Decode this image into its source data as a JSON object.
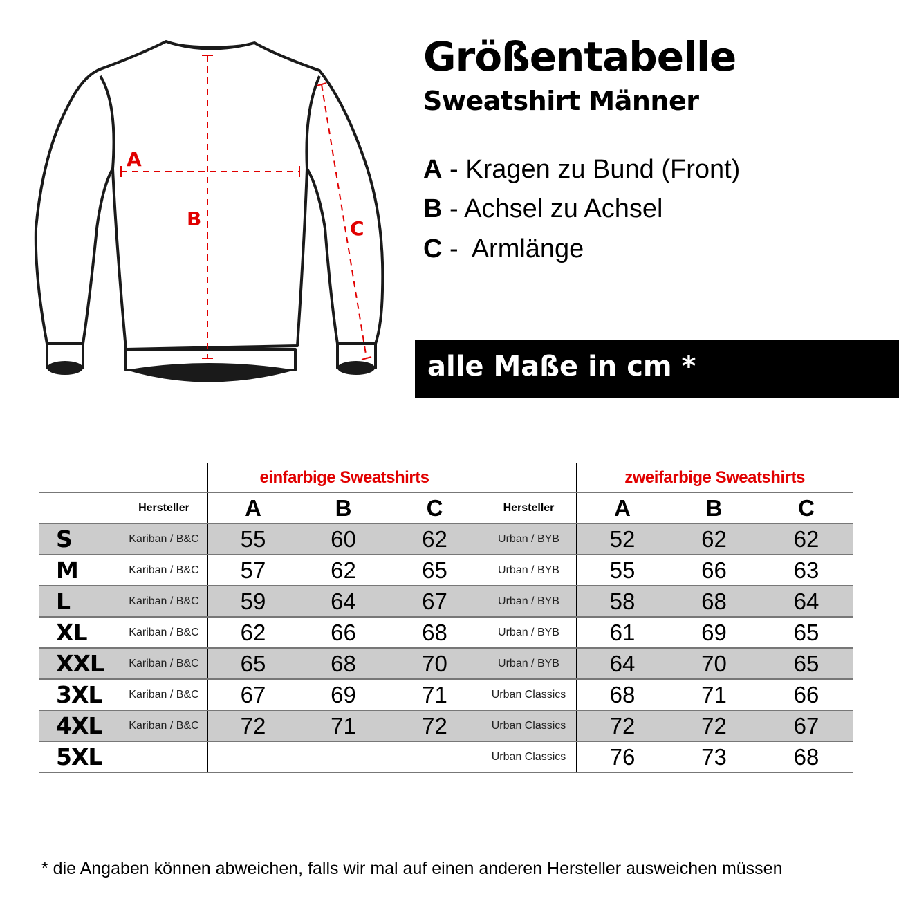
{
  "header": {
    "title": "Größentabelle",
    "subtitle": "Sweatshirt Männer"
  },
  "diagram": {
    "labels": {
      "A": "A",
      "B": "B",
      "C": "C"
    },
    "measure_color": "#e10000"
  },
  "legend": [
    {
      "key": "A",
      "sep": " - ",
      "text": "Kragen zu Bund (Front)"
    },
    {
      "key": "B",
      "sep": " - ",
      "text": "Achsel zu Achsel"
    },
    {
      "key": "C",
      "sep": " -  ",
      "text": "Armlänge"
    }
  ],
  "banner": "alle Maße in cm *",
  "table": {
    "group_single": "einfarbige Sweatshirts",
    "group_double": "zweifarbige Sweatshirts",
    "maker_header": "Hersteller",
    "columns": [
      "A",
      "B",
      "C"
    ],
    "row_colors": {
      "shaded": "#cccccc",
      "plain": "#ffffff"
    },
    "rows": [
      {
        "size": "S",
        "maker1": "Kariban / B&C",
        "v1": [
          "55",
          "60",
          "62"
        ],
        "maker2": "Urban / BYB",
        "v2": [
          "52",
          "62",
          "62"
        ]
      },
      {
        "size": "M",
        "maker1": "Kariban / B&C",
        "v1": [
          "57",
          "62",
          "65"
        ],
        "maker2": "Urban / BYB",
        "v2": [
          "55",
          "66",
          "63"
        ]
      },
      {
        "size": "L",
        "maker1": "Kariban / B&C",
        "v1": [
          "59",
          "64",
          "67"
        ],
        "maker2": "Urban / BYB",
        "v2": [
          "58",
          "68",
          "64"
        ]
      },
      {
        "size": "XL",
        "maker1": "Kariban / B&C",
        "v1": [
          "62",
          "66",
          "68"
        ],
        "maker2": "Urban / BYB",
        "v2": [
          "61",
          "69",
          "65"
        ]
      },
      {
        "size": "XXL",
        "maker1": "Kariban / B&C",
        "v1": [
          "65",
          "68",
          "70"
        ],
        "maker2": "Urban / BYB",
        "v2": [
          "64",
          "70",
          "65"
        ]
      },
      {
        "size": "3XL",
        "maker1": "Kariban / B&C",
        "v1": [
          "67",
          "69",
          "71"
        ],
        "maker2": "Urban Classics",
        "v2": [
          "68",
          "71",
          "66"
        ]
      },
      {
        "size": "4XL",
        "maker1": "Kariban / B&C",
        "v1": [
          "72",
          "71",
          "72"
        ],
        "maker2": "Urban Classics",
        "v2": [
          "72",
          "72",
          "67"
        ]
      },
      {
        "size": "5XL",
        "maker1": "",
        "v1": [
          "",
          "",
          ""
        ],
        "maker2": "Urban Classics",
        "v2": [
          "76",
          "73",
          "68"
        ]
      }
    ]
  },
  "footnote": "* die Angaben können abweichen, falls wir mal auf einen anderen Hersteller ausweichen müssen"
}
